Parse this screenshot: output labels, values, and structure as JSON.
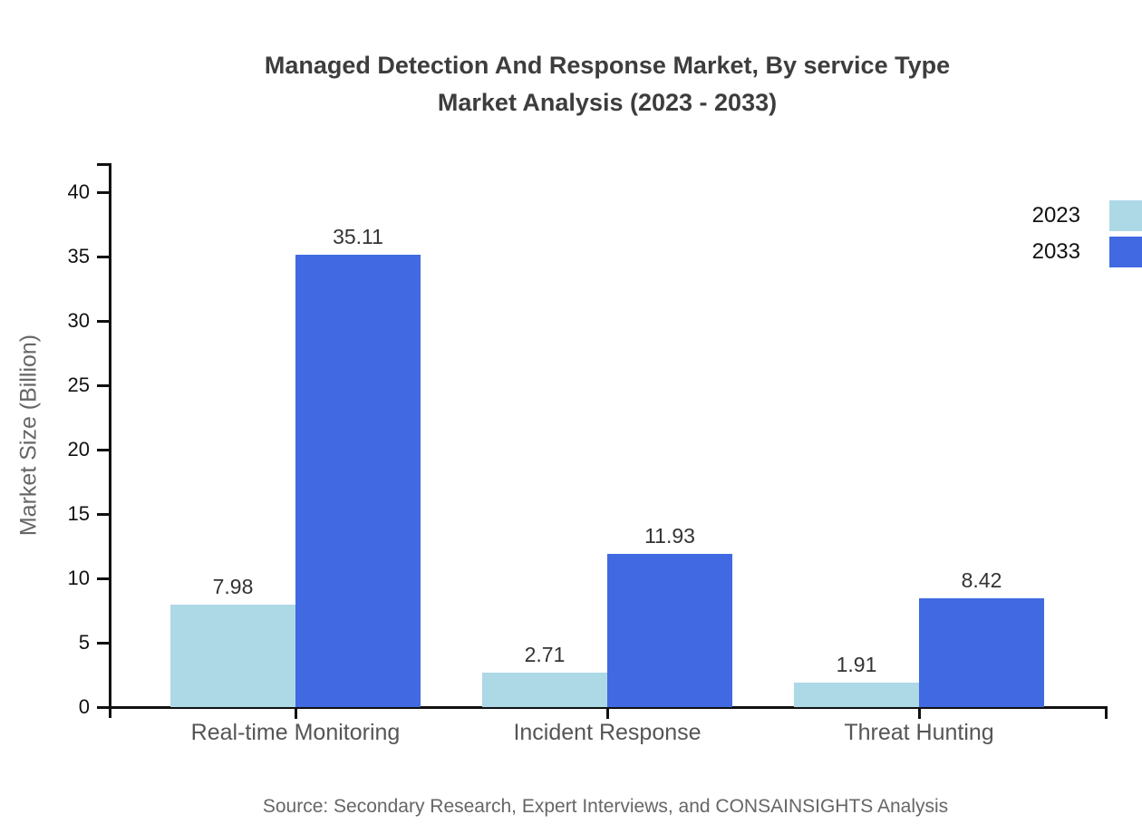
{
  "title": {
    "line1": "Managed Detection And Response Market, By service Type",
    "line2": "Market Analysis (2023 - 2033)"
  },
  "source": "Source: Secondary Research, Expert Interviews, and CONSAINSIGHTS Analysis",
  "chart_data": {
    "type": "bar",
    "categories": [
      "Real-time Monitoring",
      "Incident Response",
      "Threat Hunting"
    ],
    "series": [
      {
        "name": "2023",
        "color": "#ADD8E6",
        "values": [
          7.98,
          2.71,
          1.91
        ]
      },
      {
        "name": "2033",
        "color": "#4169E1",
        "values": [
          35.11,
          11.93,
          8.42
        ]
      }
    ],
    "value_labels": [
      "7.98",
      "35.11",
      "2.71",
      "11.93",
      "1.91",
      "8.42"
    ],
    "title": "Managed Detection And Response Market, By service Type Market Analysis (2023 - 2033)",
    "xlabel": "",
    "ylabel": "Market Size (Billion)",
    "ylim": [
      0,
      40
    ],
    "ytick_step": 5,
    "ytick_labels": [
      "0",
      "5",
      "10",
      "15",
      "20",
      "25",
      "30",
      "35",
      "40"
    ],
    "grid": false,
    "legend_position": "top-right"
  }
}
